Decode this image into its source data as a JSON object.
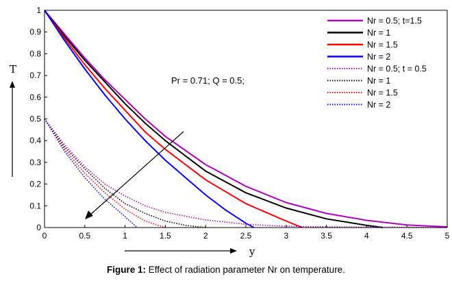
{
  "caption": {
    "label": "Figure 1:",
    "text": " Effect of radiation parameter Nr on temperature."
  },
  "chart_data": {
    "type": "line",
    "xlabel": "y",
    "ylabel": "T",
    "xlim": [
      0,
      5
    ],
    "ylim": [
      0,
      1
    ],
    "xticks": [
      "0",
      "0.5",
      "1",
      "1.5",
      "2",
      "2.5",
      "3",
      "3.5",
      "4",
      "4.5",
      "5"
    ],
    "yticks": [
      "0",
      "0.1",
      "0.2",
      "0.3",
      "0.4",
      "0.5",
      "0.6",
      "0.7",
      "0.8",
      "0.9",
      "1"
    ],
    "annotation": "Pr = 0.71; Q = 0.5;",
    "grid": false,
    "legend_position": "top-right",
    "series": [
      {
        "name": "Nr = 0.5; t=1.5",
        "color": "#b000c0",
        "style": "solid",
        "x": [
          0,
          0.25,
          0.5,
          0.75,
          1.0,
          1.25,
          1.5,
          1.75,
          2.0,
          2.5,
          3.0,
          3.5,
          4.0,
          4.5,
          5.0
        ],
        "y": [
          1.0,
          0.89,
          0.78,
          0.68,
          0.59,
          0.5,
          0.42,
          0.355,
          0.29,
          0.19,
          0.115,
          0.065,
          0.033,
          0.012,
          0.003
        ]
      },
      {
        "name": "Nr = 1",
        "color": "#000000",
        "style": "solid",
        "x": [
          0,
          0.25,
          0.5,
          0.75,
          1.0,
          1.25,
          1.5,
          1.75,
          2.0,
          2.5,
          3.0,
          3.5,
          4.0,
          4.2
        ],
        "y": [
          1.0,
          0.88,
          0.77,
          0.67,
          0.57,
          0.48,
          0.4,
          0.33,
          0.26,
          0.16,
          0.09,
          0.04,
          0.01,
          0.0
        ]
      },
      {
        "name": "Nr = 1.5",
        "color": "#ff0000",
        "style": "solid",
        "x": [
          0,
          0.25,
          0.5,
          0.75,
          1.0,
          1.25,
          1.5,
          1.75,
          2.0,
          2.5,
          3.0,
          3.2
        ],
        "y": [
          1.0,
          0.87,
          0.75,
          0.64,
          0.54,
          0.44,
          0.36,
          0.29,
          0.22,
          0.11,
          0.03,
          0.0
        ]
      },
      {
        "name": "Nr = 2",
        "color": "#0000ff",
        "style": "solid",
        "x": [
          0,
          0.25,
          0.5,
          0.75,
          1.0,
          1.25,
          1.5,
          1.75,
          2.0,
          2.25,
          2.5,
          2.6
        ],
        "y": [
          1.0,
          0.86,
          0.73,
          0.61,
          0.5,
          0.4,
          0.31,
          0.23,
          0.15,
          0.08,
          0.02,
          0.0
        ]
      },
      {
        "name": "Nr = 0.5; t = 0.5",
        "color": "#b000c0",
        "style": "dotted",
        "x": [
          0,
          0.25,
          0.5,
          0.75,
          1.0,
          1.25,
          1.5,
          2.0,
          2.5,
          3.0,
          3.5,
          4.0,
          4.5,
          5.0
        ],
        "y": [
          0.5,
          0.38,
          0.28,
          0.2,
          0.145,
          0.1,
          0.07,
          0.035,
          0.015,
          0.006,
          0.003,
          0.002,
          0.001,
          0.0
        ]
      },
      {
        "name": "Nr = 1",
        "color": "#000000",
        "style": "dotted",
        "x": [
          0,
          0.25,
          0.5,
          0.75,
          1.0,
          1.25,
          1.5,
          1.75,
          2.0
        ],
        "y": [
          0.5,
          0.37,
          0.27,
          0.18,
          0.11,
          0.065,
          0.03,
          0.01,
          0.0
        ]
      },
      {
        "name": "Nr = 1.5",
        "color": "#ff0000",
        "style": "dotted",
        "x": [
          0,
          0.25,
          0.5,
          0.75,
          1.0,
          1.25,
          1.5
        ],
        "y": [
          0.5,
          0.36,
          0.25,
          0.16,
          0.085,
          0.03,
          0.0
        ]
      },
      {
        "name": "Nr = 2",
        "color": "#0000ff",
        "style": "dotted",
        "x": [
          0,
          0.25,
          0.5,
          0.75,
          1.0,
          1.15
        ],
        "y": [
          0.5,
          0.35,
          0.23,
          0.13,
          0.05,
          0.0
        ]
      }
    ]
  }
}
